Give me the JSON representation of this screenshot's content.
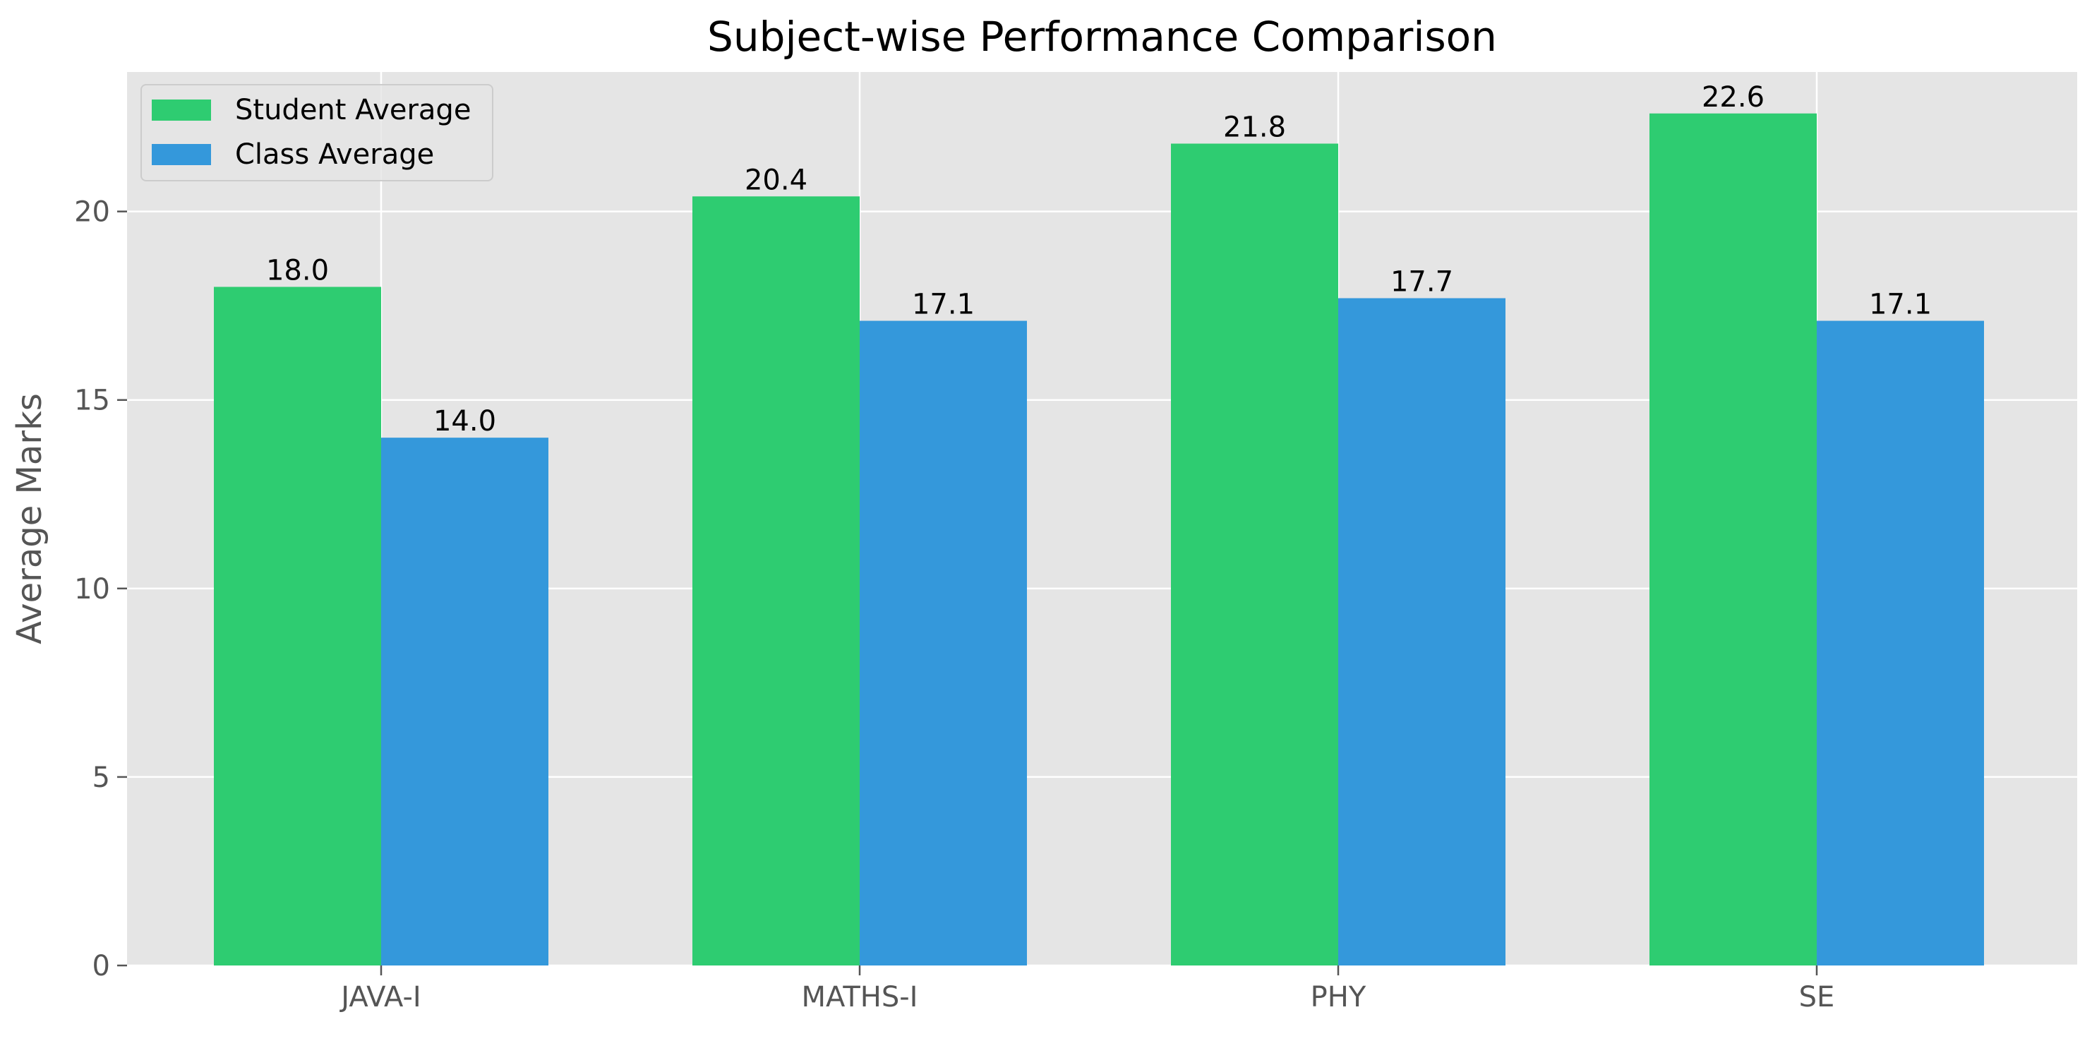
{
  "chart_data": {
    "type": "bar",
    "title": "Subject-wise Performance Comparison",
    "xlabel": "",
    "ylabel": "Average Marks",
    "categories": [
      "JAVA-I",
      "MATHS-I",
      "PHY",
      "SE"
    ],
    "series": [
      {
        "name": "Student Average",
        "values": [
          18.0,
          20.4,
          21.8,
          22.6
        ],
        "labels": [
          "18.0",
          "20.4",
          "21.8",
          "22.6"
        ],
        "color": "#2ecc71"
      },
      {
        "name": "Class Average",
        "values": [
          14.0,
          17.1,
          17.7,
          17.1
        ],
        "labels": [
          "14.0",
          "17.1",
          "17.7",
          "17.1"
        ],
        "color": "#3498db"
      }
    ],
    "yticks": [
      0,
      5,
      10,
      15,
      20
    ],
    "ylim": [
      0,
      23.7
    ],
    "grid": true,
    "legend_position": "top-left",
    "background": "#e5e5e5",
    "grid_color": "#ffffff",
    "tick_color": "#555555"
  }
}
